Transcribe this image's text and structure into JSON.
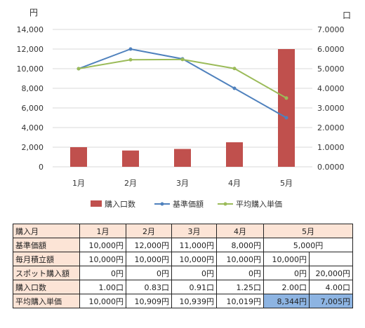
{
  "chart_data": {
    "type": "bar",
    "categories": [
      "1月",
      "2月",
      "3月",
      "4月",
      "5月"
    ],
    "series": [
      {
        "name": "購入口数",
        "kind": "bar",
        "axis": "right",
        "color": "#c0504d",
        "values": [
          1.0,
          0.83,
          0.91,
          1.25,
          6.0
        ]
      },
      {
        "name": "基準価額",
        "kind": "line",
        "axis": "left",
        "color": "#4f81bd",
        "values": [
          10000,
          12000,
          11000,
          8000,
          5000
        ]
      },
      {
        "name": "平均購入単価",
        "kind": "line",
        "axis": "left",
        "color": "#9bbb59",
        "values": [
          10000,
          10909,
          10939,
          10019,
          7005
        ]
      }
    ],
    "left_axis": {
      "unit_label": "円",
      "min": 0,
      "max": 14000,
      "step": 2000,
      "ticks": [
        "0",
        "2,000",
        "4,000",
        "6,000",
        "8,000",
        "10,000",
        "12,000",
        "14,000"
      ]
    },
    "right_axis": {
      "unit_label": "口",
      "min": 0,
      "max": 7,
      "step": 1,
      "ticks": [
        "0.0000",
        "1.0000",
        "2.0000",
        "3.0000",
        "4.0000",
        "5.0000",
        "6.0000",
        "7.0000"
      ]
    },
    "grid": true,
    "legend_position": "bottom"
  },
  "table": {
    "header": {
      "label": "購入月",
      "months": [
        "1月",
        "2月",
        "3月",
        "4月",
        "5月"
      ]
    },
    "rows": [
      {
        "label": "基準価額",
        "cells": [
          "10,000円",
          "12,000円",
          "11,000円",
          "8,000円"
        ],
        "may": "5,000円"
      },
      {
        "label": "毎月積立額",
        "cells": [
          "10,000円",
          "10,000円",
          "10,000円",
          "10,000円",
          "10,000円",
          ""
        ]
      },
      {
        "label": "スポット購入額",
        "cells": [
          "0円",
          "0円",
          "0円",
          "0円",
          "0円",
          "20,000円"
        ]
      },
      {
        "label": "購入口数",
        "cells": [
          "1.00口",
          "0.83口",
          "0.91口",
          "1.25口",
          "2.00口",
          "4.00口"
        ]
      },
      {
        "label": "平均購入単価",
        "cells": [
          "10,000円",
          "10,909円",
          "10,939円",
          "10,019円",
          "8,344円",
          "7,005円"
        ]
      }
    ]
  }
}
